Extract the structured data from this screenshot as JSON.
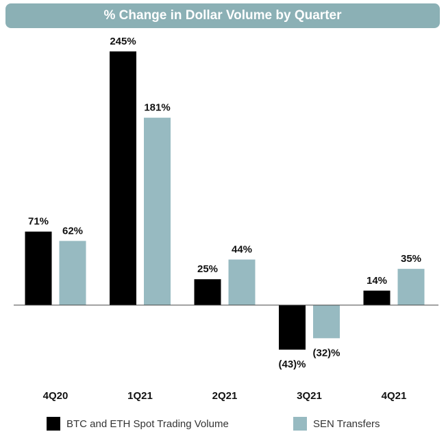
{
  "chart_data": {
    "type": "bar",
    "title": "% Change in Dollar Volume by Quarter",
    "categories": [
      "4Q20",
      "1Q21",
      "2Q21",
      "3Q21",
      "4Q21"
    ],
    "series": [
      {
        "name": "BTC and ETH Spot Trading Volume",
        "color": "#000000",
        "values": [
          71,
          245,
          25,
          -43,
          14
        ],
        "value_labels": [
          "71%",
          "245%",
          "25%",
          "(43)%",
          "14%"
        ]
      },
      {
        "name": "SEN Transfers",
        "color": "#97bac1",
        "values": [
          62,
          181,
          44,
          -32,
          35
        ],
        "value_labels": [
          "62%",
          "181%",
          "44%",
          "(32)%",
          "35%"
        ]
      }
    ],
    "legend": "bottom"
  }
}
